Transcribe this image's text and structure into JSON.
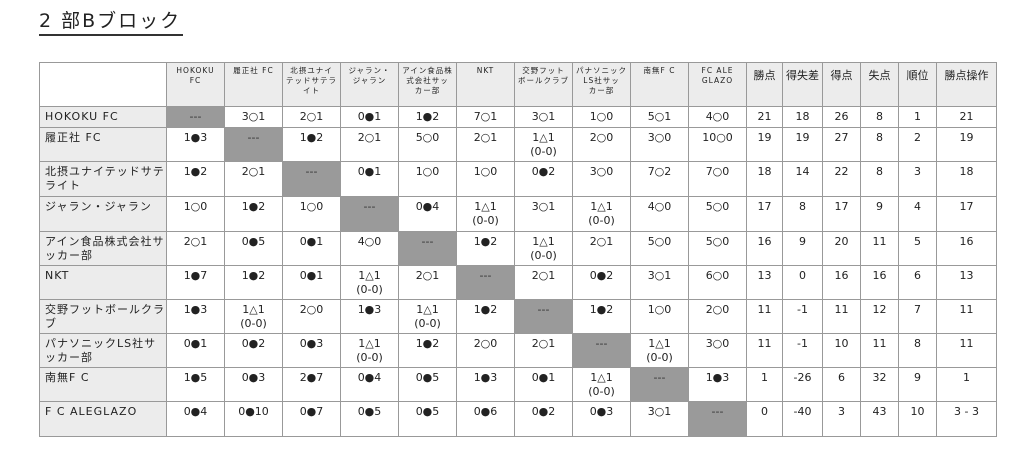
{
  "title": "2 部Bブロック",
  "columns": [
    "HOKOKU\nFC",
    "履正社 FC",
    "北摂ユナイ\nテッドサテラ\nイト",
    "ジャラン・\nジャラン",
    "アイン食品株\n式会社サッ\nカー部",
    "NKT",
    "交野フット\nボールクラブ",
    "パナソニック\nLS社サッ\nカー部",
    "南無F C",
    "FC ALE\nGLAZO"
  ],
  "stat_columns": [
    "勝点",
    "得失差",
    "得点",
    "失点",
    "順位",
    "勝点操作"
  ],
  "rows": [
    {
      "team": "HOKOKU FC",
      "results": [
        "---",
        "3○1",
        "2○1",
        "0●1",
        "1●2",
        "7○1",
        "3○1",
        "1○0",
        "5○1",
        "4○0"
      ],
      "stats": [
        "21",
        "18",
        "26",
        "8",
        "1",
        "21"
      ]
    },
    {
      "team": "履正社 FC",
      "results": [
        "1●3",
        "---",
        "1●2",
        "2○1",
        "5○0",
        "2○1",
        "1△1\n(0-0)",
        "2○0",
        "3○0",
        "10○0"
      ],
      "stats": [
        "19",
        "19",
        "27",
        "8",
        "2",
        "19"
      ]
    },
    {
      "team": "北摂ユナイテッドサテライト",
      "results": [
        "1●2",
        "2○1",
        "---",
        "0●1",
        "1○0",
        "1○0",
        "0●2",
        "3○0",
        "7○2",
        "7○0"
      ],
      "stats": [
        "18",
        "14",
        "22",
        "8",
        "3",
        "18"
      ]
    },
    {
      "team": "ジャラン・ジャラン",
      "results": [
        "1○0",
        "1●2",
        "1○0",
        "---",
        "0●4",
        "1△1\n(0-0)",
        "3○1",
        "1△1\n(0-0)",
        "4○0",
        "5○0"
      ],
      "stats": [
        "17",
        "8",
        "17",
        "9",
        "4",
        "17"
      ]
    },
    {
      "team": "アイン食品株式会社サッカー部",
      "results": [
        "2○1",
        "0●5",
        "0●1",
        "4○0",
        "---",
        "1●2",
        "1△1\n(0-0)",
        "2○1",
        "5○0",
        "5○0"
      ],
      "stats": [
        "16",
        "9",
        "20",
        "11",
        "5",
        "16"
      ]
    },
    {
      "team": "NKT",
      "results": [
        "1●7",
        "1●2",
        "0●1",
        "1△1\n(0-0)",
        "2○1",
        "---",
        "2○1",
        "0●2",
        "3○1",
        "6○0"
      ],
      "stats": [
        "13",
        "0",
        "16",
        "16",
        "6",
        "13"
      ]
    },
    {
      "team": "交野フットボールクラブ",
      "results": [
        "1●3",
        "1△1\n(0-0)",
        "2○0",
        "1●3",
        "1△1\n(0-0)",
        "1●2",
        "---",
        "1●2",
        "1○0",
        "2○0"
      ],
      "stats": [
        "11",
        "-1",
        "11",
        "12",
        "7",
        "11"
      ]
    },
    {
      "team": "パナソニックLS社サッカー部",
      "results": [
        "0●1",
        "0●2",
        "0●3",
        "1△1\n(0-0)",
        "1●2",
        "2○0",
        "2○1",
        "---",
        "1△1\n(0-0)",
        "3○0"
      ],
      "stats": [
        "11",
        "-1",
        "10",
        "11",
        "8",
        "11"
      ]
    },
    {
      "team": "南無F C",
      "results": [
        "1●5",
        "0●3",
        "2●7",
        "0●4",
        "0●5",
        "1●3",
        "0●1",
        "1△1\n(0-0)",
        "---",
        "1●3"
      ],
      "stats": [
        "1",
        "-26",
        "6",
        "32",
        "9",
        "1"
      ]
    },
    {
      "team": "F C ALEGLAZO",
      "results": [
        "0●4",
        "0●10",
        "0●7",
        "0●5",
        "0●5",
        "0●6",
        "0●2",
        "0●3",
        "3○1",
        "---"
      ],
      "stats": [
        "0",
        "-40",
        "3",
        "43",
        "10",
        "3 - 3"
      ]
    }
  ]
}
